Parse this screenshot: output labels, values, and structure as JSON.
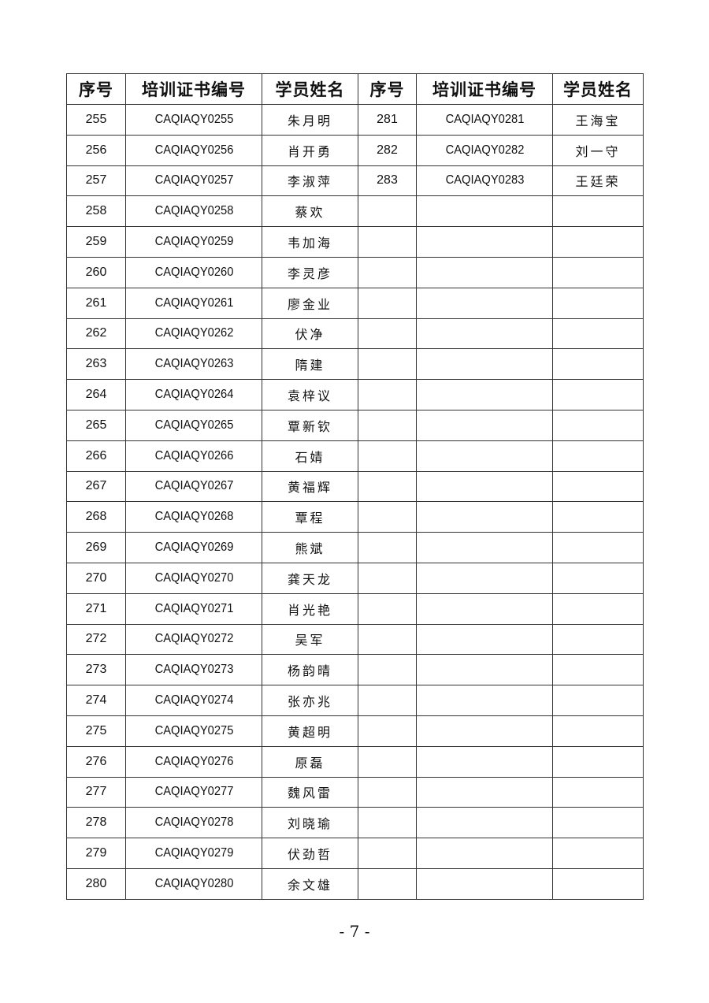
{
  "headers": [
    "序号",
    "培训证书编号",
    "学员姓名",
    "序号",
    "培训证书编号",
    "学员姓名"
  ],
  "left_rows": [
    [
      "255",
      "CAQIAQY0255",
      "朱月明"
    ],
    [
      "256",
      "CAQIAQY0256",
      "肖开勇"
    ],
    [
      "257",
      "CAQIAQY0257",
      "李淑萍"
    ],
    [
      "258",
      "CAQIAQY0258",
      "蔡欢"
    ],
    [
      "259",
      "CAQIAQY0259",
      "韦加海"
    ],
    [
      "260",
      "CAQIAQY0260",
      "李灵彦"
    ],
    [
      "261",
      "CAQIAQY0261",
      "廖金业"
    ],
    [
      "262",
      "CAQIAQY0262",
      "伏净"
    ],
    [
      "263",
      "CAQIAQY0263",
      "隋建"
    ],
    [
      "264",
      "CAQIAQY0264",
      "袁梓议"
    ],
    [
      "265",
      "CAQIAQY0265",
      "覃新钦"
    ],
    [
      "266",
      "CAQIAQY0266",
      "石婧"
    ],
    [
      "267",
      "CAQIAQY0267",
      "黄福辉"
    ],
    [
      "268",
      "CAQIAQY0268",
      "覃程"
    ],
    [
      "269",
      "CAQIAQY0269",
      "熊斌"
    ],
    [
      "270",
      "CAQIAQY0270",
      "龚天龙"
    ],
    [
      "271",
      "CAQIAQY0271",
      "肖光艳"
    ],
    [
      "272",
      "CAQIAQY0272",
      "吴军"
    ],
    [
      "273",
      "CAQIAQY0273",
      "杨韵晴"
    ],
    [
      "274",
      "CAQIAQY0274",
      "张亦兆"
    ],
    [
      "275",
      "CAQIAQY0275",
      "黄超明"
    ],
    [
      "276",
      "CAQIAQY0276",
      "原磊"
    ],
    [
      "277",
      "CAQIAQY0277",
      "魏风雷"
    ],
    [
      "278",
      "CAQIAQY0278",
      "刘晓瑜"
    ],
    [
      "279",
      "CAQIAQY0279",
      "伏劲哲"
    ],
    [
      "280",
      "CAQIAQY0280",
      "余文雄"
    ]
  ],
  "right_rows": [
    [
      "281",
      "CAQIAQY0281",
      "王海宝"
    ],
    [
      "282",
      "CAQIAQY0282",
      "刘一守"
    ],
    [
      "283",
      "CAQIAQY0283",
      "王廷荣"
    ]
  ],
  "page_number": "- 7 -"
}
